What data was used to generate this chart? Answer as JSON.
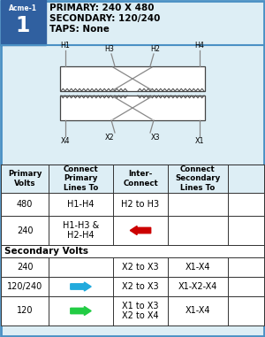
{
  "title_box": {
    "acme": "Acme-1",
    "num": "1",
    "primary": "PRIMARY: 240 X 480",
    "secondary": "SECONDARY: 120/240",
    "taps": "TAPS: None"
  },
  "bg_color": "#ddeef5",
  "header_blue": "#4a90c4",
  "acme_bg": "#3060a0",
  "col_headers": [
    "Primary\nVolts",
    "Connect\nPrimary\nLines To",
    "Inter-\nConnect",
    "Connect\nSecondary\nLines To"
  ],
  "primary_rows": [
    {
      "volts": "480",
      "connect": "H1-H4",
      "inter": "H2 to H3",
      "sec": ""
    },
    {
      "volts": "240",
      "connect": "H1-H3 &\nH2-H4",
      "inter": "arrow_red_left",
      "sec": ""
    }
  ],
  "secondary_rows": [
    {
      "volts": "240",
      "connect": "",
      "inter": "X2 to X3",
      "sec": "X1-X4"
    },
    {
      "volts": "120/240",
      "connect": "arrow_blue_right",
      "inter": "X2 to X3",
      "sec": "X1-X2-X4"
    },
    {
      "volts": "120",
      "connect": "arrow_green_right",
      "inter": "X1 to X3\nX2 to X4",
      "sec": "X1-X4"
    }
  ],
  "arrow_red": "#cc0000",
  "arrow_blue": "#22aadd",
  "arrow_green": "#22cc44",
  "coil_color": "#444444",
  "line_color": "#888888"
}
